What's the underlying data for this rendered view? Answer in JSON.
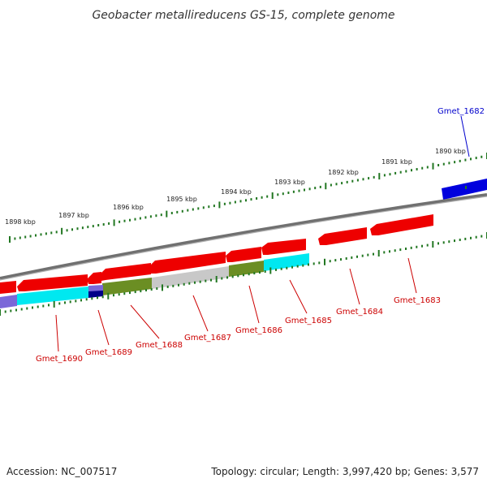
{
  "title": "Geobacter metallireducens GS-15, complete genome",
  "footer": {
    "accession": "Accession: NC_007517",
    "summary": "Topology: circular; Length: 3,997,420 bp; Genes: 3,577"
  },
  "colors": {
    "forward_gene": "#ee0000",
    "forward_label": "#cc0000",
    "blue_gene": "#0000dd",
    "blue_label": "#0000cc",
    "backbone": "#808080",
    "ticks": "#227722",
    "cyan": "#00e8f0",
    "olive": "#6b8e23",
    "light_gray": "#c8c8c8",
    "lavender": "#7b68d8",
    "navy": "#000088"
  },
  "tick_labels": [
    "1898 kbp",
    "1897 kbp",
    "1896 kbp",
    "1895 kbp",
    "1894 kbp",
    "1893 kbp",
    "1892 kbp",
    "1891 kbp",
    "1890 kbp"
  ],
  "gene_labels": {
    "gmet_1682": "Gmet_1682",
    "gmet_1683": "Gmet_1683",
    "gmet_1684": "Gmet_1684",
    "gmet_1685": "Gmet_1685",
    "gmet_1686": "Gmet_1686",
    "gmet_1687": "Gmet_1687",
    "gmet_1688": "Gmet_1688",
    "gmet_1689": "Gmet_1689",
    "gmet_1690": "Gmet_1690"
  }
}
